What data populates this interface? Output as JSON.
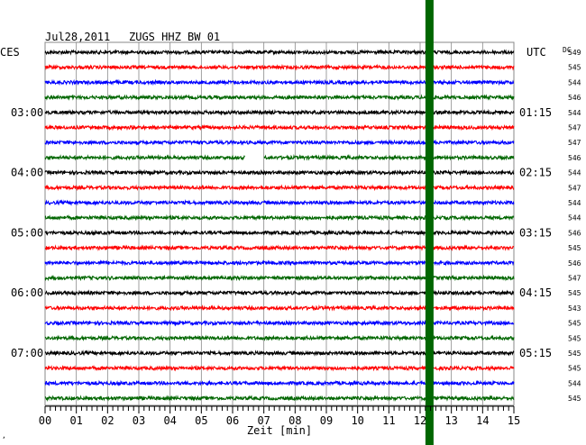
{
  "header": {
    "date": "Jul28,2011",
    "station": "ZUGS HHZ BW 01"
  },
  "labels": {
    "left_zone": "CES",
    "right_zone": "UTC",
    "dc_column": "DC",
    "x_axis": "Zeit [min]",
    "corner_mark": "‚"
  },
  "left_times": [
    "03:00",
    "04:00",
    "05:00",
    "06:00",
    "07:00"
  ],
  "right_times": [
    "01:15",
    "02:15",
    "03:15",
    "04:15",
    "05:15"
  ],
  "dc_values": [
    "549",
    "545",
    "544",
    "546",
    "544",
    "547",
    "547",
    "546",
    "544",
    "547",
    "544",
    "544",
    "546",
    "545",
    "546",
    "547",
    "545",
    "543",
    "545",
    "545",
    "545",
    "545",
    "544",
    "545"
  ],
  "x_ticks": [
    "00",
    "01",
    "02",
    "03",
    "04",
    "05",
    "06",
    "07",
    "08",
    "09",
    "10",
    "11",
    "12",
    "13",
    "14",
    "15"
  ],
  "trace_colors": [
    "#000000",
    "#ff0000",
    "#0000ff",
    "#006600"
  ],
  "marker": {
    "color": "#006600",
    "minute": 12.3
  },
  "data_gap": {
    "trace": 7,
    "from_minute": 6.4,
    "to_minute": 7.0
  }
}
